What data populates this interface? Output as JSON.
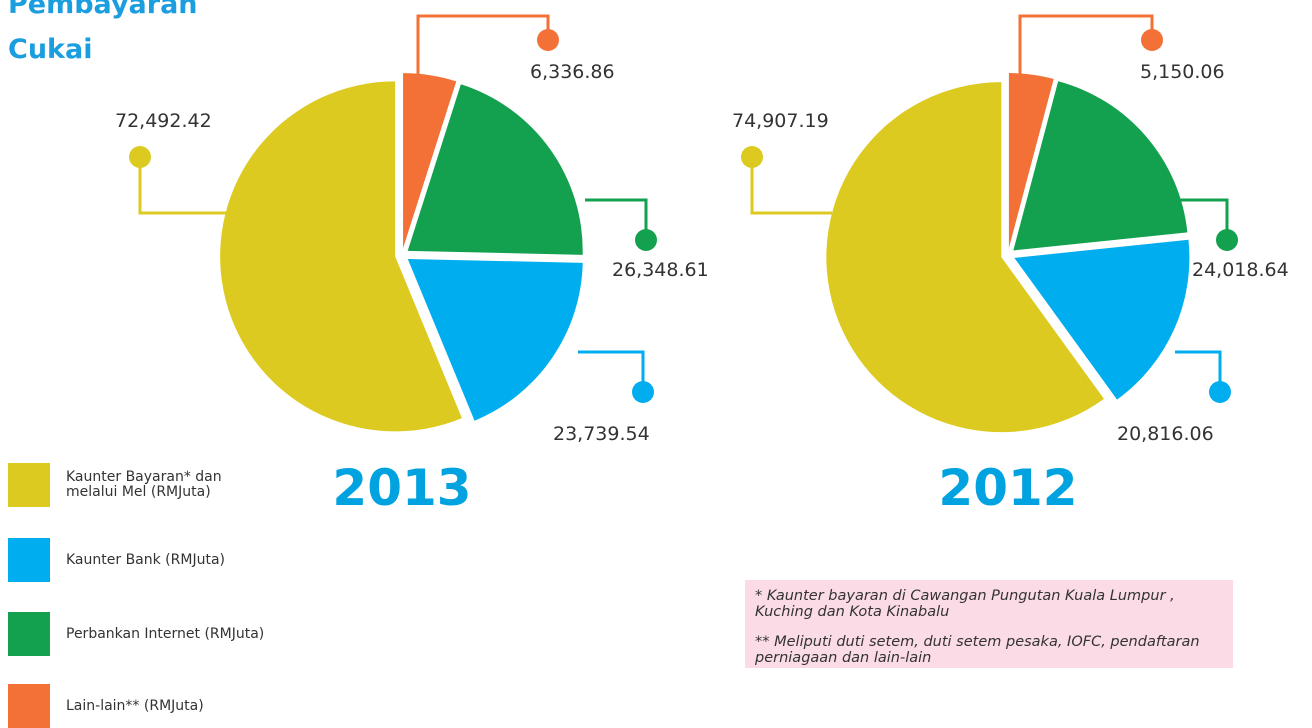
{
  "title": "Pembayaran Cukai",
  "categories": [
    "Kaunter Bayaran* dan melalui Mel (RMJuta)",
    "Kaunter Bank (RMJuta)",
    "Perbankan Internet (RMJuta)",
    "Lain-lain** (RMJuta)"
  ],
  "colors": [
    "#dcca21",
    "#00aeef",
    "#13a04f",
    "#f37036"
  ],
  "chart_data": [
    {
      "type": "pie",
      "title": "2013",
      "values": [
        72492.42,
        23739.54,
        26348.61,
        6336.86
      ],
      "value_labels": [
        "72,492.42",
        "23,739.54",
        "26,348.61",
        "6,336.86"
      ]
    },
    {
      "type": "pie",
      "title": "2012",
      "values": [
        74907.19,
        20816.06,
        24018.64,
        5150.06
      ],
      "value_labels": [
        "74,907.19",
        "20,816.06",
        "24,018.64",
        "5,150.06"
      ]
    }
  ],
  "notes": [
    "* Kaunter bayaran di Cawangan Pungutan Kuala Lumpur , Kuching dan Kota Kinabalu",
    "** Meliputi duti setem, duti setem pesaka, IOFC, pendaftaran perniagaan dan lain-lain"
  ]
}
